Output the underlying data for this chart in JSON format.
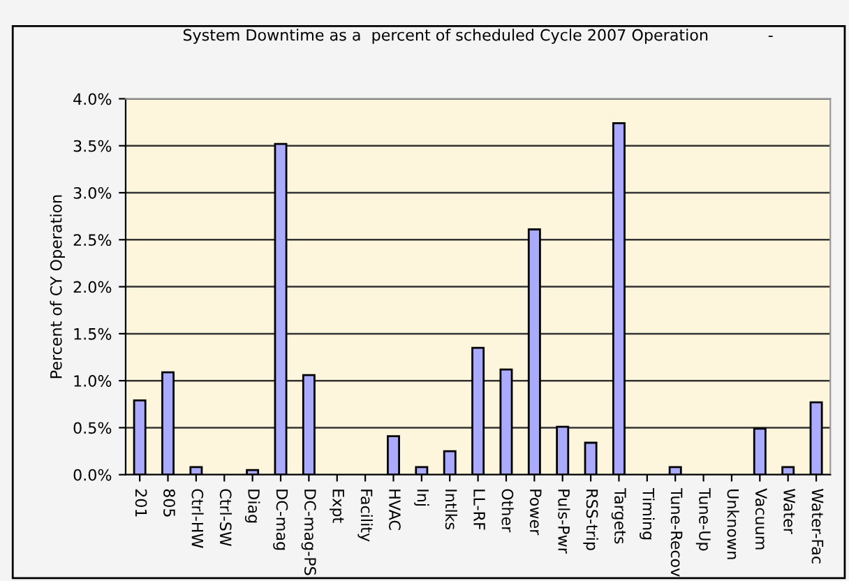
{
  "chart_data": {
    "type": "bar",
    "title": "System Downtime as a  percent of scheduled Cycle 2007 Operation            -",
    "ylabel": "Percent of CY Operation",
    "categories": [
      "201",
      "805",
      "Ctrl-HW",
      "Ctrl-SW",
      "Diag",
      "DC-mag",
      "DC-mag-PS",
      "Expt",
      "Facility",
      "HVAC",
      "Inj",
      "Intlks",
      "LL-RF",
      "Other",
      "Power",
      "Puls-Pwr",
      "RSS-trip",
      "Targets",
      "Timing",
      "Tune-Recov",
      "Tune-Up",
      "Unknown",
      "Vacuum",
      "Water",
      "Water-Fac"
    ],
    "values": [
      0.79,
      1.09,
      0.08,
      0,
      0.05,
      3.52,
      1.06,
      0,
      0,
      0.41,
      0.08,
      0.25,
      1.35,
      1.12,
      2.61,
      0.51,
      0.34,
      3.74,
      0,
      0.08,
      0,
      0,
      0.49,
      0.08,
      0.77
    ],
    "color": "#aaaaff",
    "ylim": [
      0,
      4
    ],
    "yticks": [
      {
        "value": 0,
        "label": "0.0%"
      },
      {
        "value": 0.5,
        "label": "0.5%"
      },
      {
        "value": 1,
        "label": "1.0%"
      },
      {
        "value": 1.5,
        "label": "1.5%"
      },
      {
        "value": 2,
        "label": "2.0%"
      },
      {
        "value": 2.5,
        "label": "2.5%"
      },
      {
        "value": 3,
        "label": "3.0%"
      },
      {
        "value": 3.5,
        "label": "3.5%"
      },
      {
        "value": 4,
        "label": "4.0%"
      }
    ],
    "grid": "y"
  }
}
